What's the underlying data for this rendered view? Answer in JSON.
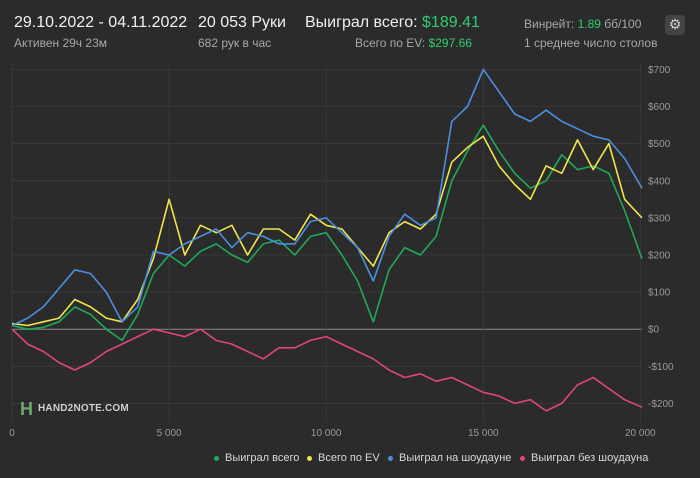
{
  "header": {
    "date_range": "29.10.2022 - 04.11.2022",
    "active": "Активен 29ч 23м",
    "hands": "20 053 Руки",
    "hands_per_hour": "682 рук в час",
    "won_label": "Выиграл всего:",
    "won_value": "$189.41",
    "ev_label": "Всего по EV:",
    "ev_value": "$297.66",
    "winrate_label": "Винрейт:",
    "winrate_value": "1.89",
    "winrate_unit": "бб/100",
    "tables": "1 среднее число столов"
  },
  "icons": {
    "settings": "gear-icon",
    "logo": "hand2note-logo"
  },
  "colors": {
    "background": "#2b2b2b",
    "won": "#1faa59",
    "ev": "#f0e64a",
    "showdown": "#4a8fe0",
    "nonshowdown": "#e0457b",
    "accent_green": "#2ecc71"
  },
  "logo_text": "HAND2NOTE.COM",
  "chart_data": {
    "type": "line",
    "title": "",
    "xlabel": "",
    "ylabel": "",
    "xlim": [
      0,
      20053
    ],
    "ylim": [
      -250,
      720
    ],
    "x_ticks": [
      0,
      5000,
      10000,
      15000,
      20000
    ],
    "x_tick_labels": [
      "0",
      "5 000",
      "10 000",
      "15 000",
      "20 000"
    ],
    "y_ticks": [
      700,
      600,
      500,
      400,
      300,
      200,
      100,
      0,
      -100,
      -200
    ],
    "y_tick_labels": [
      "$700",
      "$600",
      "$500",
      "$400",
      "$300",
      "$200",
      "$100",
      "$0",
      "-$100",
      "-$200"
    ],
    "grid": true,
    "legend_position": "bottom",
    "x": [
      0,
      500,
      1000,
      1500,
      2000,
      2500,
      3000,
      3500,
      4000,
      4500,
      5000,
      5500,
      6000,
      6500,
      7000,
      7500,
      8000,
      8500,
      9000,
      9500,
      10000,
      10500,
      11000,
      11500,
      12000,
      12500,
      13000,
      13500,
      14000,
      14500,
      15000,
      15500,
      16000,
      16500,
      17000,
      17500,
      18000,
      18500,
      19000,
      19500,
      20053
    ],
    "series": [
      {
        "name": "Выиграл всего",
        "color": "#1faa59",
        "values": [
          10,
          0,
          5,
          20,
          60,
          40,
          0,
          -30,
          40,
          150,
          200,
          170,
          210,
          230,
          200,
          180,
          230,
          240,
          200,
          250,
          260,
          200,
          130,
          20,
          160,
          220,
          200,
          250,
          400,
          480,
          550,
          480,
          420,
          380,
          400,
          470,
          430,
          440,
          420,
          320,
          190
        ]
      },
      {
        "name": "Всего по EV",
        "color": "#f0e64a",
        "values": [
          15,
          10,
          20,
          30,
          80,
          60,
          30,
          20,
          80,
          190,
          350,
          200,
          280,
          260,
          280,
          200,
          270,
          270,
          240,
          310,
          280,
          270,
          220,
          170,
          260,
          290,
          270,
          310,
          450,
          490,
          520,
          440,
          390,
          350,
          440,
          420,
          510,
          430,
          500,
          350,
          300
        ]
      },
      {
        "name": "Выиграл на шоудауне",
        "color": "#4a8fe0",
        "values": [
          10,
          30,
          60,
          110,
          160,
          150,
          100,
          20,
          60,
          210,
          200,
          230,
          250,
          270,
          220,
          260,
          250,
          230,
          230,
          290,
          300,
          260,
          220,
          130,
          250,
          310,
          280,
          300,
          560,
          600,
          700,
          640,
          580,
          560,
          590,
          560,
          540,
          520,
          510,
          460,
          380
        ]
      },
      {
        "name": "Выиграл без шоудауна",
        "color": "#e0457b",
        "values": [
          0,
          -40,
          -60,
          -90,
          -110,
          -90,
          -60,
          -40,
          -20,
          0,
          -10,
          -20,
          0,
          -30,
          -40,
          -60,
          -80,
          -50,
          -50,
          -30,
          -20,
          -40,
          -60,
          -80,
          -110,
          -130,
          -120,
          -140,
          -130,
          -150,
          -170,
          -180,
          -200,
          -190,
          -220,
          -200,
          -150,
          -130,
          -160,
          -190,
          -210
        ]
      }
    ]
  }
}
